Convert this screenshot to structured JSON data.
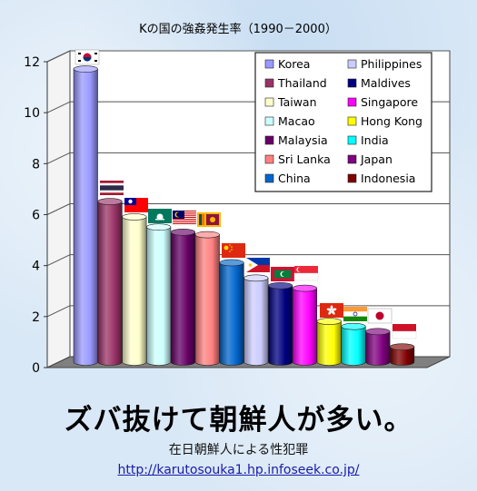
{
  "chart_data": {
    "type": "bar",
    "title": "Kの国の強姦発生率（1990－2000）",
    "xlabel": "",
    "ylabel": "",
    "ylim": [
      0,
      12
    ],
    "yticks": [
      "0",
      "2",
      "4",
      "6",
      "8",
      "10",
      "12"
    ],
    "grid": true,
    "legend_position": "top-right",
    "categories": [
      "Korea",
      "Thailand",
      "Taiwan",
      "Macao",
      "Malaysia",
      "Sri Lanka",
      "China",
      "Philippines",
      "Maldives",
      "Singapore",
      "Hong Kong",
      "India",
      "Japan",
      "Indonesia"
    ],
    "values": [
      11.5,
      6.3,
      5.7,
      5.3,
      5.1,
      5.0,
      3.9,
      3.3,
      3.0,
      2.9,
      1.6,
      1.4,
      1.2,
      0.6
    ],
    "colors": [
      "#9999ff",
      "#993366",
      "#ffffcc",
      "#ccffff",
      "#660066",
      "#ff8080",
      "#0066cc",
      "#ccccff",
      "#000080",
      "#ff00ff",
      "#ffff00",
      "#00ffff",
      "#800080",
      "#800000"
    ],
    "flags": [
      "korea-flag",
      "thailand-flag",
      "taiwan-flag",
      "macao-flag",
      "malaysia-flag",
      "sri-lanka-flag",
      "china-flag",
      "philippines-flag",
      "maldives-flag",
      "singapore-flag",
      "hong-kong-flag",
      "india-flag",
      "japan-flag",
      "indonesia-flag"
    ]
  },
  "headline": "ズバ抜けて朝鮮人が多い。",
  "subtitle": "在日朝鮮人による性犯罪",
  "url": "http://karutosouka1.hp.infoseek.co.jp/"
}
